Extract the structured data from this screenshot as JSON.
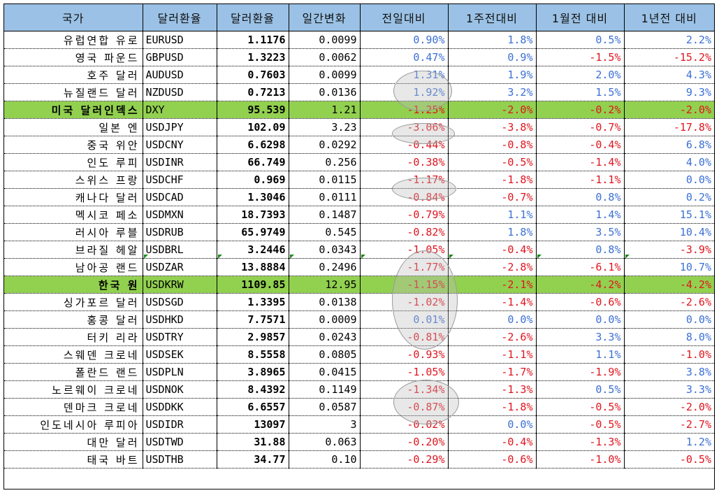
{
  "headers": [
    "국가",
    "달러환율",
    "달러환율",
    "일간변화",
    "전일대비",
    "1주전대비",
    "1월전 대비",
    "1년전 대비"
  ],
  "rows": [
    {
      "name": "유럽연합 유로",
      "code": "EURUSD",
      "rate": "1.1176",
      "daily": "0.0099",
      "d1": "0.90%",
      "w1": "1.8%",
      "m1": "0.5%",
      "y1": "2.2%"
    },
    {
      "name": "영국 파운드",
      "code": "GBPUSD",
      "rate": "1.3223",
      "daily": "0.0062",
      "d1": "0.47%",
      "w1": "0.9%",
      "m1": "-1.5%",
      "y1": "-15.2%"
    },
    {
      "name": "호주 달러",
      "code": "AUDUSD",
      "rate": "0.7603",
      "daily": "0.0099",
      "d1": "1.31%",
      "w1": "1.9%",
      "m1": "2.0%",
      "y1": "4.3%"
    },
    {
      "name": "뉴질랜드 달러",
      "code": "NZDUSD",
      "rate": "0.7213",
      "daily": "0.0136",
      "d1": "1.92%",
      "w1": "3.2%",
      "m1": "1.5%",
      "y1": "9.3%"
    },
    {
      "name": "미국 달러인덱스",
      "code": "DXY",
      "rate": "95.539",
      "daily": "1.21",
      "d1": "-1.25%",
      "w1": "-2.0%",
      "m1": "-0.2%",
      "y1": "-2.0%",
      "highlight": true
    },
    {
      "name": "일본 엔",
      "code": "USDJPY",
      "rate": "102.09",
      "daily": "3.23",
      "d1": "-3.06%",
      "w1": "-3.8%",
      "m1": "-0.7%",
      "y1": "-17.8%"
    },
    {
      "name": "중국 위안",
      "code": "USDCNY",
      "rate": "6.6298",
      "daily": "0.0292",
      "d1": "-0.44%",
      "w1": "-0.8%",
      "m1": "-0.4%",
      "y1": "6.8%"
    },
    {
      "name": "인도 루피",
      "code": "USDINR",
      "rate": "66.749",
      "daily": "0.256",
      "d1": "-0.38%",
      "w1": "-0.5%",
      "m1": "-1.4%",
      "y1": "4.0%"
    },
    {
      "name": "스위스 프랑",
      "code": "USDCHF",
      "rate": "0.969",
      "daily": "0.0115",
      "d1": "-1.17%",
      "w1": "-1.8%",
      "m1": "-1.1%",
      "y1": "0.0%"
    },
    {
      "name": "캐나다 달러",
      "code": "USDCAD",
      "rate": "1.3046",
      "daily": "0.0111",
      "d1": "-0.84%",
      "w1": "-0.7%",
      "m1": "0.8%",
      "y1": "0.2%"
    },
    {
      "name": "멕시코 페소",
      "code": "USDMXN",
      "rate": "18.7393",
      "daily": "0.1487",
      "d1": "-0.79%",
      "w1": "1.1%",
      "m1": "1.4%",
      "y1": "15.1%"
    },
    {
      "name": "러시아 루블",
      "code": "USDRUB",
      "rate": "65.9749",
      "daily": "0.545",
      "d1": "-0.82%",
      "w1": "1.8%",
      "m1": "3.5%",
      "y1": "10.4%"
    },
    {
      "name": "브라질 헤알",
      "code": "USDBRL",
      "rate": "3.2446",
      "daily": "0.0343",
      "d1": "-1.05%",
      "w1": "-0.4%",
      "m1": "0.8%",
      "y1": "-3.9%"
    },
    {
      "name": "남아공 랜드",
      "code": "USDZAR",
      "rate": "13.8884",
      "daily": "0.2496",
      "d1": "-1.77%",
      "w1": "-2.8%",
      "m1": "-6.1%",
      "y1": "10.7%"
    },
    {
      "name": "한국 원",
      "code": "USDKRW",
      "rate": "1109.85",
      "daily": "12.95",
      "d1": "-1.15%",
      "w1": "-2.1%",
      "m1": "-4.2%",
      "y1": "-4.2%",
      "highlight": true
    },
    {
      "name": "싱가포르 달러",
      "code": "USDSGD",
      "rate": "1.3395",
      "daily": "0.0138",
      "d1": "-1.02%",
      "w1": "-1.4%",
      "m1": "-0.6%",
      "y1": "-2.6%"
    },
    {
      "name": "홍콩 달러",
      "code": "USDHKD",
      "rate": "7.7571",
      "daily": "0.0009",
      "d1": "0.01%",
      "w1": "0.0%",
      "m1": "0.0%",
      "y1": "0.0%"
    },
    {
      "name": "터키 리라",
      "code": "USDTRY",
      "rate": "2.9857",
      "daily": "0.0243",
      "d1": "-0.81%",
      "w1": "-2.6%",
      "m1": "3.3%",
      "y1": "8.0%"
    },
    {
      "name": "스웨덴 크로네",
      "code": "USDSEK",
      "rate": "8.5558",
      "daily": "0.0805",
      "d1": "-0.93%",
      "w1": "-1.1%",
      "m1": "1.1%",
      "y1": "-1.0%"
    },
    {
      "name": "폴란드 랜드",
      "code": "USDPLN",
      "rate": "3.8965",
      "daily": "0.0415",
      "d1": "-1.05%",
      "w1": "-1.7%",
      "m1": "-1.9%",
      "y1": "3.8%"
    },
    {
      "name": "노르웨이 크로네",
      "code": "USDNOK",
      "rate": "8.4392",
      "daily": "0.1149",
      "d1": "-1.34%",
      "w1": "-1.3%",
      "m1": "0.5%",
      "y1": "3.3%"
    },
    {
      "name": "덴마크 크로네",
      "code": "USDDKK",
      "rate": "6.6557",
      "daily": "0.0587",
      "d1": "-0.87%",
      "w1": "-1.8%",
      "m1": "-0.5%",
      "y1": "-2.0%"
    },
    {
      "name": "인도네시아 루피아",
      "code": "USDIDR",
      "rate": "13097",
      "daily": "3",
      "d1": "-0.02%",
      "w1": "0.0%",
      "m1": "-0.5%",
      "y1": "-2.7%"
    },
    {
      "name": "대만 달러",
      "code": "USDTWD",
      "rate": "31.88",
      "daily": "0.063",
      "d1": "-0.20%",
      "w1": "-0.4%",
      "m1": "-1.3%",
      "y1": "1.2%"
    },
    {
      "name": "태국 바트",
      "code": "USDTHB",
      "rate": "34.77",
      "daily": "0.10",
      "d1": "-0.29%",
      "w1": "-0.6%",
      "m1": "-1.0%",
      "y1": "-0.5%"
    }
  ],
  "colors": {
    "header_bg": "#9bc2e6",
    "highlight_bg": "#92d050",
    "positive": "#3b6fd4",
    "negative": "#e0141e"
  }
}
